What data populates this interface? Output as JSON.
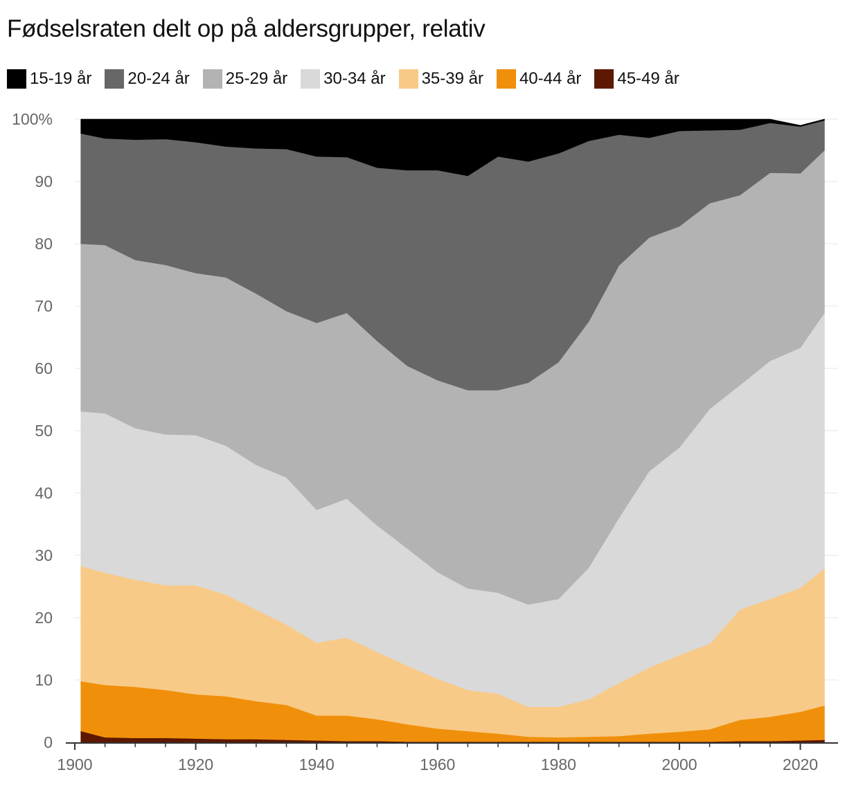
{
  "chart_data": {
    "type": "area",
    "stacked": true,
    "title": "Fødselsraten delt op på aldersgrupper, relativ",
    "xlabel": "",
    "ylabel": "",
    "xlim": [
      1899,
      2026
    ],
    "ylim": [
      0,
      100
    ],
    "x_ticks": [
      1900,
      1920,
      1940,
      1960,
      1980,
      2000,
      2020
    ],
    "y_ticks": [
      {
        "value": 0,
        "label": "0"
      },
      {
        "value": 10,
        "label": "10"
      },
      {
        "value": 20,
        "label": "20"
      },
      {
        "value": 30,
        "label": "30"
      },
      {
        "value": 40,
        "label": "40"
      },
      {
        "value": 50,
        "label": "50"
      },
      {
        "value": 60,
        "label": "60"
      },
      {
        "value": 70,
        "label": "70"
      },
      {
        "value": 80,
        "label": "80"
      },
      {
        "value": 90,
        "label": "90"
      },
      {
        "value": 100,
        "label": "100%"
      }
    ],
    "grid": true,
    "legend_position": "top-left",
    "x": [
      1901,
      1905,
      1910,
      1915,
      1920,
      1925,
      1930,
      1935,
      1940,
      1945,
      1950,
      1955,
      1960,
      1965,
      1970,
      1975,
      1980,
      1985,
      1990,
      1995,
      2000,
      2005,
      2010,
      2015,
      2020,
      2024
    ],
    "series": [
      {
        "name": "45-49 år",
        "color": "#5c1800",
        "values": [
          1.8,
          0.8,
          0.7,
          0.7,
          0.6,
          0.5,
          0.5,
          0.4,
          0.3,
          0.2,
          0.2,
          0.1,
          0.1,
          0.1,
          0.1,
          0.1,
          0.1,
          0.1,
          0.1,
          0.1,
          0.1,
          0.1,
          0.2,
          0.2,
          0.3,
          0.4
        ]
      },
      {
        "name": "40-44 år",
        "color": "#f0900a",
        "values": [
          8.0,
          8.4,
          8.2,
          7.7,
          7.1,
          6.9,
          6.1,
          5.6,
          4.0,
          4.1,
          3.5,
          2.8,
          2.1,
          1.7,
          1.3,
          0.8,
          0.7,
          0.8,
          0.9,
          1.3,
          1.6,
          2.0,
          3.4,
          3.9,
          4.6,
          5.5
        ]
      },
      {
        "name": "35-39 år",
        "color": "#f8ca88",
        "values": [
          18.5,
          18.0,
          17.2,
          16.8,
          17.5,
          16.3,
          14.7,
          12.9,
          11.7,
          12.5,
          10.8,
          9.4,
          8.0,
          6.6,
          6.4,
          4.8,
          4.9,
          6.0,
          8.5,
          10.6,
          12.3,
          13.7,
          17.7,
          18.9,
          19.9,
          22.0
        ]
      },
      {
        "name": "30-34 år",
        "color": "#d9d9d9",
        "values": [
          24.8,
          25.6,
          24.3,
          24.2,
          24.1,
          23.9,
          23.2,
          23.6,
          21.3,
          22.3,
          20.3,
          18.8,
          17.1,
          16.3,
          16.2,
          16.4,
          17.3,
          21.1,
          26.5,
          31.5,
          33.3,
          37.7,
          36.0,
          38.2,
          38.5,
          41.0
        ]
      },
      {
        "name": "25-29 år",
        "color": "#b3b3b3",
        "values": [
          26.9,
          27.0,
          27.0,
          27.2,
          26.0,
          27.0,
          27.5,
          26.7,
          30.0,
          29.8,
          29.6,
          29.3,
          30.8,
          31.8,
          32.5,
          35.6,
          38.0,
          39.5,
          40.5,
          37.5,
          35.5,
          33.0,
          30.5,
          30.2,
          28.0,
          26.1
        ]
      },
      {
        "name": "20-24 år",
        "color": "#676767",
        "values": [
          17.7,
          17.1,
          19.3,
          20.2,
          21.0,
          21.0,
          23.3,
          26.0,
          26.7,
          25.0,
          27.8,
          31.4,
          33.7,
          34.4,
          37.5,
          35.5,
          33.5,
          29.0,
          21.0,
          16.0,
          15.3,
          11.7,
          10.5,
          8.0,
          7.5,
          4.8
        ]
      },
      {
        "name": "15-19 år",
        "color": "#000000",
        "values": [
          2.3,
          3.1,
          3.3,
          3.2,
          3.7,
          4.4,
          4.7,
          4.8,
          6.0,
          6.1,
          7.8,
          8.2,
          8.2,
          9.1,
          6.0,
          6.8,
          5.5,
          3.5,
          2.5,
          3.0,
          1.9,
          1.8,
          1.7,
          0.6,
          0.2,
          0.2
        ]
      }
    ]
  }
}
